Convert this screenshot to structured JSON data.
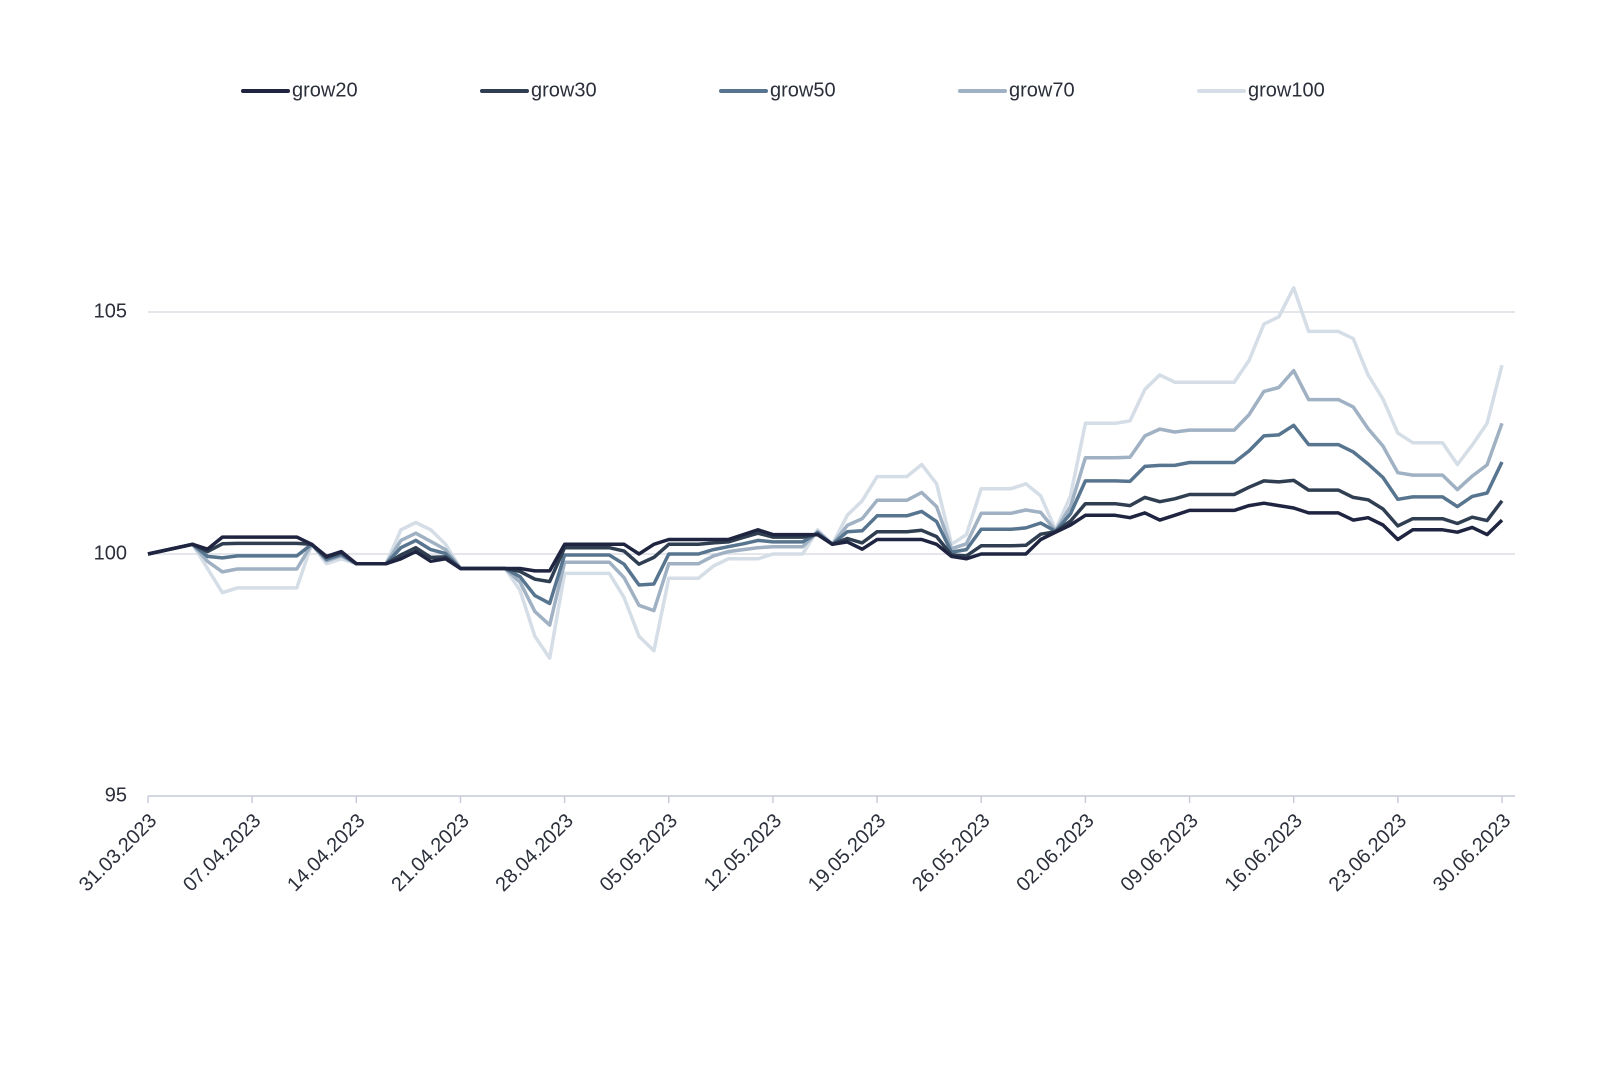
{
  "chart_data": {
    "type": "line",
    "x": [
      "31.03.2023",
      "03.04.2023",
      "04.04.2023",
      "05.04.2023",
      "06.04.2023",
      "10.04.2023",
      "11.04.2023",
      "12.04.2023",
      "13.04.2023",
      "14.04.2023",
      "16.04.2023",
      "17.04.2023",
      "18.04.2023",
      "19.04.2023",
      "20.04.2023",
      "21.04.2023",
      "24.04.2023",
      "25.04.2023",
      "26.04.2023",
      "27.04.2023",
      "28.04.2023",
      "01.05.2023",
      "02.05.2023",
      "03.05.2023",
      "04.05.2023",
      "05.05.2023",
      "07.05.2023",
      "08.05.2023",
      "09.05.2023",
      "10.05.2023",
      "11.05.2023",
      "12.05.2023",
      "14.05.2023",
      "15.05.2023",
      "16.05.2023",
      "17.05.2023",
      "18.05.2023",
      "19.05.2023",
      "21.05.2023",
      "22.05.2023",
      "23.05.2023",
      "24.05.2023",
      "25.05.2023",
      "26.05.2023",
      "28.05.2023",
      "29.05.2023",
      "30.05.2023",
      "31.05.2023",
      "01.06.2023",
      "02.06.2023",
      "04.06.2023",
      "05.06.2023",
      "06.06.2023",
      "07.06.2023",
      "08.06.2023",
      "09.06.2023",
      "12.06.2023",
      "13.06.2023",
      "14.06.2023",
      "15.06.2023",
      "16.06.2023",
      "17.06.2023",
      "19.06.2023",
      "20.06.2023",
      "21.06.2023",
      "22.06.2023",
      "23.06.2023",
      "24.06.2023",
      "26.06.2023",
      "27.06.2023",
      "28.06.2023",
      "29.06.2023",
      "30.06.2023"
    ],
    "series": [
      {
        "name": "grow20",
        "color": "#1f2540",
        "values": [
          100,
          100.2,
          100.1,
          100.35,
          100.35,
          100.35,
          100.2,
          99.95,
          100.05,
          99.8,
          99.8,
          99.9,
          100.05,
          99.85,
          99.9,
          99.7,
          99.7,
          99.7,
          99.65,
          99.65,
          100.2,
          100.2,
          100.2,
          100.0,
          100.2,
          100.3,
          100.3,
          100.3,
          100.3,
          100.4,
          100.5,
          100.4,
          100.4,
          100.4,
          100.2,
          100.25,
          100.1,
          100.3,
          100.3,
          100.3,
          100.2,
          99.95,
          99.9,
          100.0,
          100.0,
          100.0,
          100.3,
          100.45,
          100.6,
          100.8,
          100.8,
          100.75,
          100.85,
          100.7,
          100.8,
          100.9,
          100.9,
          101.0,
          101.05,
          101.0,
          100.95,
          100.85,
          100.85,
          100.7,
          100.75,
          100.6,
          100.3,
          100.5,
          100.5,
          100.45,
          100.55,
          100.4,
          100.7
        ]
      },
      {
        "name": "grow30",
        "color": "#2f3e51",
        "values": [
          100,
          100.2,
          100.05,
          100.21,
          100.22,
          100.22,
          100.2,
          99.93,
          100.03,
          99.8,
          99.8,
          99.98,
          100.13,
          99.93,
          99.94,
          99.7,
          99.7,
          99.64,
          99.48,
          99.43,
          100.13,
          100.13,
          100.06,
          99.79,
          99.93,
          100.2,
          100.2,
          100.23,
          100.25,
          100.34,
          100.43,
          100.35,
          100.35,
          100.41,
          100.2,
          100.32,
          100.23,
          100.46,
          100.46,
          100.49,
          100.36,
          99.98,
          99.96,
          100.17,
          100.17,
          100.18,
          100.41,
          100.46,
          100.68,
          101.04,
          101.04,
          101.0,
          101.17,
          101.08,
          101.14,
          101.23,
          101.23,
          101.38,
          101.51,
          101.49,
          101.52,
          101.32,
          101.32,
          101.17,
          101.12,
          100.93,
          100.58,
          100.73,
          100.73,
          100.63,
          100.76,
          100.69,
          101.1
        ]
      },
      {
        "name": "grow50",
        "color": "#587590",
        "values": [
          100,
          100.2,
          99.95,
          99.92,
          99.96,
          99.96,
          100.2,
          99.89,
          99.99,
          99.8,
          99.8,
          100.13,
          100.28,
          100.09,
          100.01,
          99.7,
          99.7,
          99.53,
          99.14,
          98.98,
          99.98,
          99.98,
          99.79,
          99.36,
          99.38,
          100.0,
          100.0,
          100.09,
          100.15,
          100.21,
          100.28,
          100.25,
          100.25,
          100.44,
          100.2,
          100.46,
          100.48,
          100.79,
          100.79,
          100.88,
          100.67,
          100.04,
          100.09,
          100.51,
          100.51,
          100.54,
          100.64,
          100.47,
          100.83,
          101.51,
          101.51,
          101.5,
          101.81,
          101.83,
          101.83,
          101.89,
          101.89,
          102.13,
          102.44,
          102.46,
          102.66,
          102.26,
          102.26,
          102.11,
          101.86,
          101.58,
          101.13,
          101.18,
          101.18,
          100.98,
          101.19,
          101.26,
          101.9
        ]
      },
      {
        "name": "grow70",
        "color": "#9fb1c3",
        "values": [
          100,
          100.2,
          99.85,
          99.63,
          99.69,
          99.69,
          100.2,
          99.86,
          99.96,
          99.8,
          99.8,
          100.28,
          100.43,
          100.26,
          100.09,
          99.7,
          99.7,
          99.42,
          98.81,
          98.53,
          99.83,
          99.83,
          99.51,
          98.94,
          98.83,
          99.8,
          99.8,
          99.96,
          100.05,
          100.09,
          100.13,
          100.15,
          100.15,
          100.46,
          100.2,
          100.59,
          100.73,
          101.11,
          101.11,
          101.27,
          100.98,
          100.11,
          100.21,
          100.84,
          100.84,
          100.91,
          100.86,
          100.48,
          100.98,
          101.99,
          101.99,
          102.0,
          102.44,
          102.58,
          102.52,
          102.56,
          102.56,
          102.88,
          103.36,
          103.44,
          103.79,
          103.19,
          103.19,
          103.04,
          102.59,
          102.23,
          101.68,
          101.63,
          101.63,
          101.33,
          101.61,
          101.84,
          102.7
        ]
      },
      {
        "name": "grow100",
        "color": "#d5dde6",
        "values": [
          100,
          100.2,
          99.7,
          99.2,
          99.3,
          99.3,
          100.2,
          99.8,
          99.9,
          99.8,
          99.8,
          100.5,
          100.65,
          100.5,
          100.2,
          99.7,
          99.7,
          99.25,
          98.3,
          97.85,
          99.6,
          99.6,
          99.1,
          98.3,
          98.0,
          99.5,
          99.5,
          99.75,
          99.9,
          99.9,
          99.9,
          100.0,
          100.0,
          100.5,
          100.2,
          100.8,
          101.1,
          101.6,
          101.6,
          101.85,
          101.45,
          100.2,
          100.4,
          101.35,
          101.35,
          101.45,
          101.2,
          100.5,
          101.2,
          102.7,
          102.7,
          102.75,
          103.4,
          103.7,
          103.55,
          103.55,
          103.55,
          104.0,
          104.75,
          104.9,
          105.5,
          104.6,
          104.6,
          104.45,
          103.7,
          103.2,
          102.5,
          102.3,
          102.3,
          101.85,
          102.25,
          102.7,
          103.9
        ]
      }
    ],
    "xlim": [
      "31.03.2023",
      "30.06.2023"
    ],
    "xticks": [
      "31.03.2023",
      "07.04.2023",
      "14.04.2023",
      "21.04.2023",
      "28.04.2023",
      "05.05.2023",
      "12.05.2023",
      "19.05.2023",
      "26.05.2023",
      "02.06.2023",
      "09.06.2023",
      "16.06.2023",
      "23.06.2023",
      "30.06.2023"
    ],
    "ylim": [
      95,
      110
    ],
    "yticks": [
      95,
      100,
      105
    ],
    "grid": true,
    "legend": "top"
  }
}
